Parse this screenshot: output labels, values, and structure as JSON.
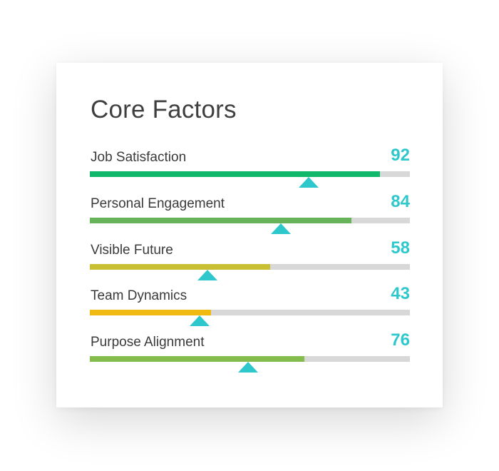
{
  "card": {
    "title": "Core Factors"
  },
  "colors": {
    "score": "#2ec8cc",
    "marker": "#2ec8cc",
    "track": "#d8d8d8"
  },
  "factors": [
    {
      "label": "Job Satisfaction",
      "score": "92",
      "fill_fraction": 0.907,
      "marker_fraction": 0.683,
      "color": "#10b86c"
    },
    {
      "label": "Personal Engagement",
      "score": "84",
      "fill_fraction": 0.817,
      "marker_fraction": 0.597,
      "color": "#66b35a"
    },
    {
      "label": "Visible Future",
      "score": "58",
      "fill_fraction": 0.563,
      "marker_fraction": 0.367,
      "color": "#c9bf32"
    },
    {
      "label": "Team Dynamics",
      "score": "43",
      "fill_fraction": 0.379,
      "marker_fraction": 0.343,
      "color": "#f0ba12"
    },
    {
      "label": "Purpose Alignment",
      "score": "76",
      "fill_fraction": 0.67,
      "marker_fraction": 0.494,
      "color": "#84bc4c"
    }
  ]
}
